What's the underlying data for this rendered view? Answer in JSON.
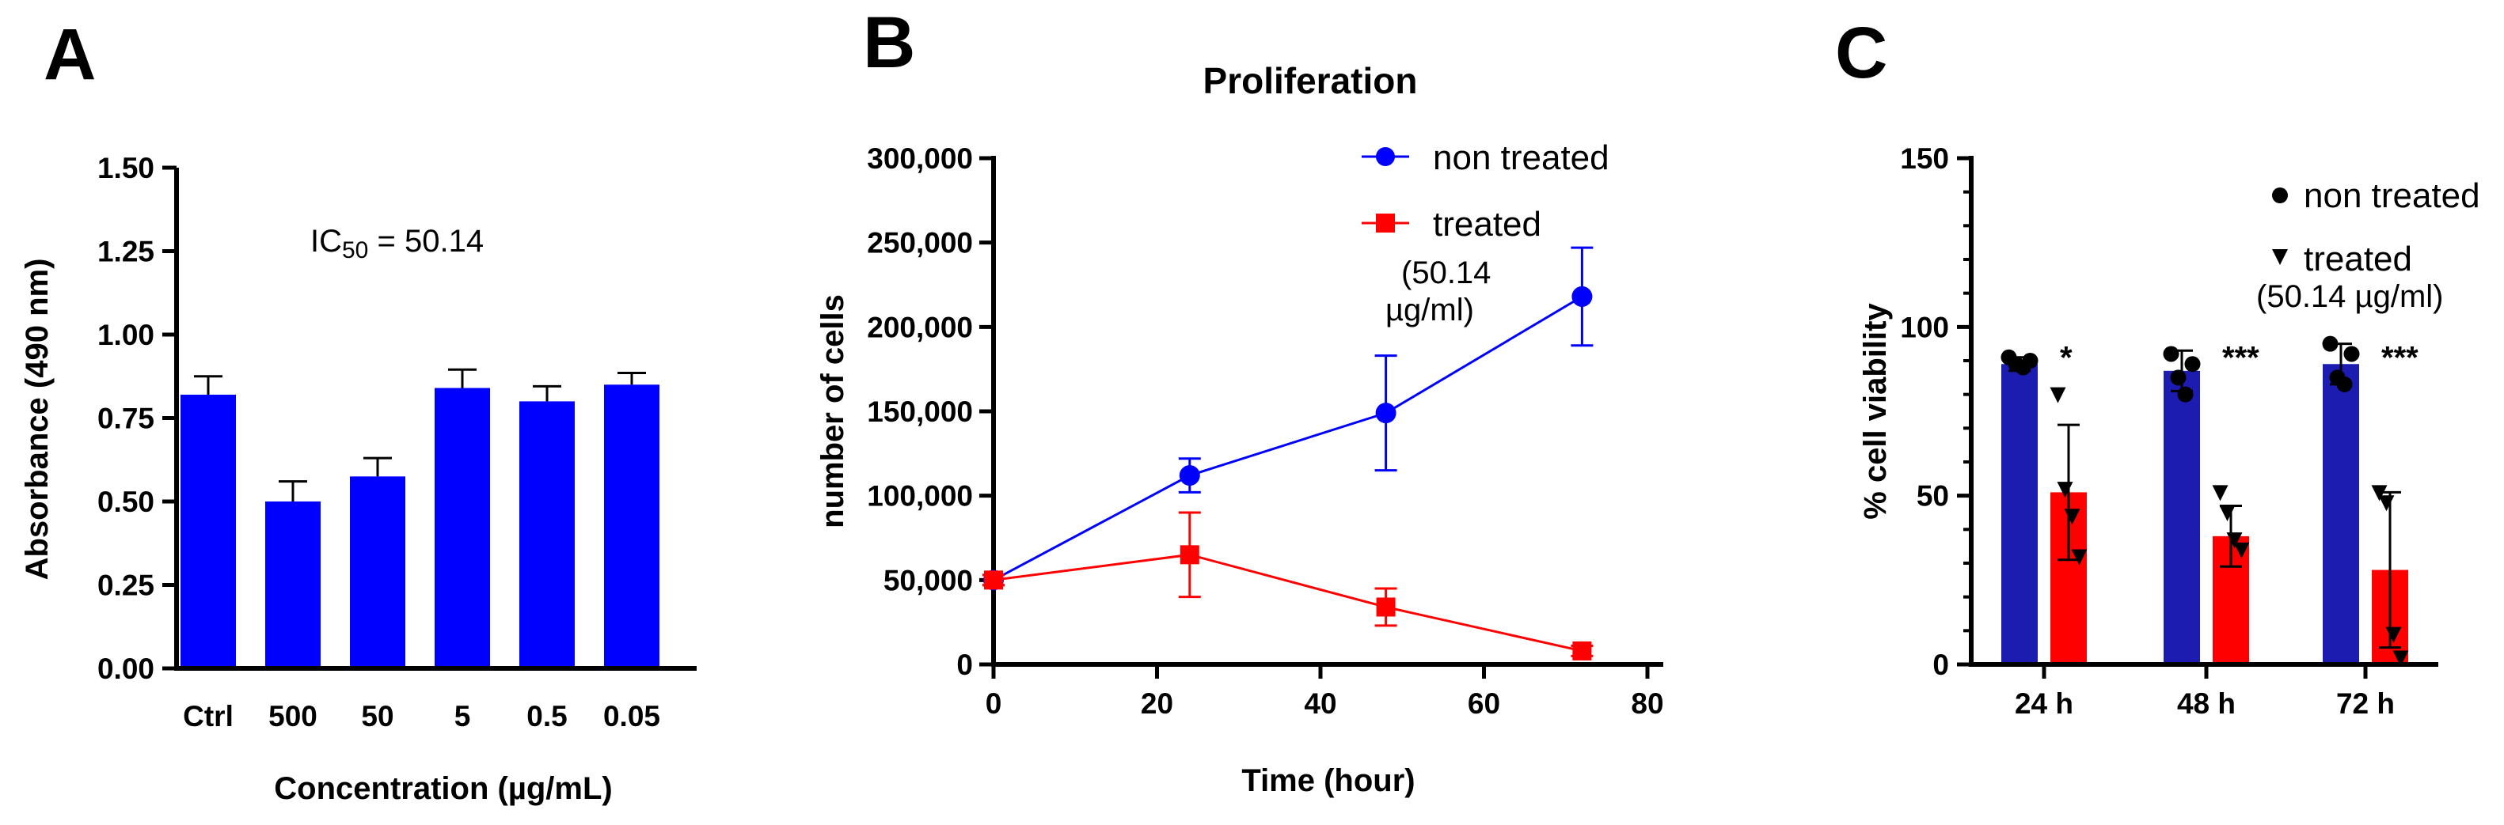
{
  "panels": {
    "a": "A",
    "b": "B",
    "c": "C"
  },
  "colors": {
    "blue_bar": "#0000ff",
    "navy_bar": "#1c1cb0",
    "red": "#ff0000",
    "blue_line": "#0000ff",
    "black": "#000000"
  },
  "chart_data": [
    {
      "type": "bar",
      "panel": "A",
      "title": "",
      "xlabel": "Concentration (µg/mL)",
      "ylabel": "Absorbance (490 nm)",
      "categories": [
        "Ctrl",
        "500",
        "50",
        "5",
        "0.5",
        "0.05"
      ],
      "values": [
        0.82,
        0.5,
        0.575,
        0.84,
        0.8,
        0.85
      ],
      "errors": [
        0.055,
        0.06,
        0.055,
        0.055,
        0.045,
        0.035
      ],
      "ylim": [
        0,
        1.5
      ],
      "yticks": [
        "0.00",
        "0.25",
        "0.50",
        "0.75",
        "1.00",
        "1.25",
        "1.50"
      ],
      "annotation": {
        "prefix": "IC",
        "subscript": "50",
        "suffix": " = 50.14"
      },
      "grid": false
    },
    {
      "type": "line",
      "panel": "B",
      "title": "Proliferation",
      "xlabel": "Time (hour)",
      "ylabel": "number of cells",
      "xlim": [
        0,
        80
      ],
      "ylim": [
        0,
        300000
      ],
      "xticks": [
        "0",
        "20",
        "40",
        "60",
        "80"
      ],
      "yticks": [
        "0",
        "50,000",
        "100,000",
        "150,000",
        "200,000",
        "250,000",
        "300,000"
      ],
      "series": [
        {
          "name": "non treated",
          "marker": "circle",
          "x": [
            0,
            24,
            48,
            72
          ],
          "y": [
            50000,
            112000,
            149000,
            218000
          ],
          "err": [
            3000,
            10000,
            34000,
            29000
          ]
        },
        {
          "name": "treated",
          "name_note_1": "(50.14",
          "name_note_2": "µg/ml)",
          "marker": "square",
          "x": [
            0,
            24,
            48,
            72
          ],
          "y": [
            50000,
            65000,
            34000,
            8000
          ],
          "err": [
            3000,
            25000,
            11000,
            3000
          ]
        }
      ],
      "legend": "top-right",
      "grid": false
    },
    {
      "type": "bar",
      "panel": "C",
      "title": "",
      "xlabel": "",
      "ylabel": "% cell viability",
      "categories": [
        "24 h",
        "48 h",
        "72 h"
      ],
      "ylim": [
        0,
        150
      ],
      "yticks": [
        "0",
        "50",
        "100",
        "150"
      ],
      "series": [
        {
          "name": "non treated",
          "marker": "circle",
          "values": [
            89,
            87,
            89
          ],
          "errors": [
            2,
            6,
            6
          ],
          "points": [
            [
              91,
              89,
              88,
              90
            ],
            [
              92,
              85,
              80,
              89
            ],
            [
              95,
              85,
              83,
              92
            ]
          ]
        },
        {
          "name": "treated",
          "name_note": "(50.14 µg/ml)",
          "marker": "triangle-down",
          "values": [
            51,
            38,
            28
          ],
          "errors": [
            20,
            9,
            23
          ],
          "points": [
            [
              80,
              52,
              44,
              32
            ],
            [
              51,
              45,
              37,
              34
            ],
            [
              51,
              48,
              9,
              2
            ]
          ]
        }
      ],
      "significance": [
        "*",
        "***",
        "***"
      ],
      "legend": "top-right",
      "grid": false
    }
  ]
}
